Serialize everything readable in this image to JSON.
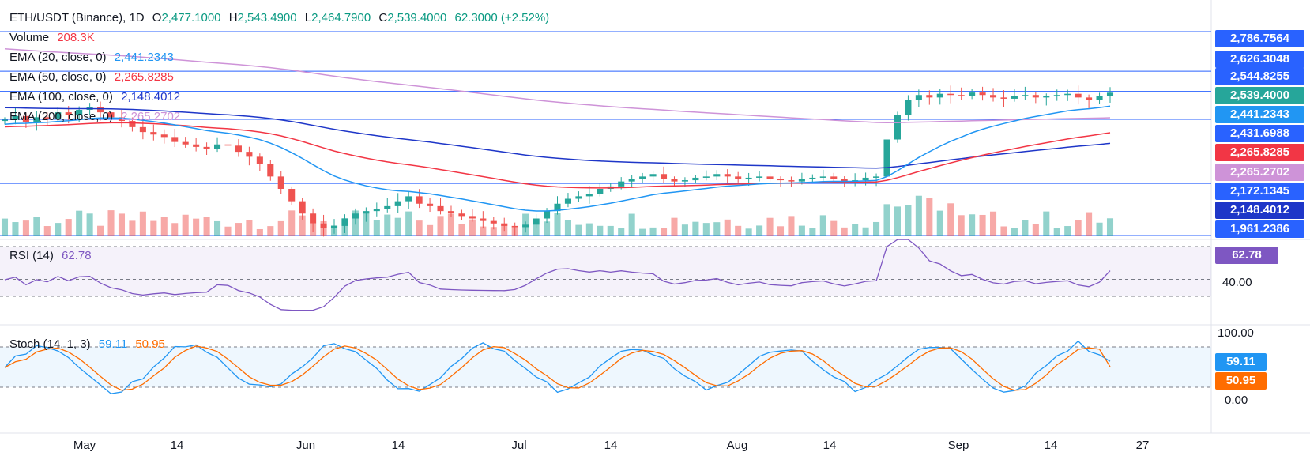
{
  "header": {
    "symbol": "ETH/USDT (Binance), 1D",
    "open_label": "O",
    "open": "2,477.1000",
    "high_label": "H",
    "high": "2,543.4900",
    "low_label": "L",
    "low": "2,464.7900",
    "close_label": "C",
    "close": "2,539.4000",
    "change": "62.3000 (+2.52%)"
  },
  "legend": {
    "volume_label": "Volume",
    "volume_value": "208.3K",
    "ema20_label": "EMA (20, close, 0)",
    "ema20_value": "2,441.2343",
    "ema50_label": "EMA (50, close, 0)",
    "ema50_value": "2,265.8285",
    "ema100_label": "EMA (100, close, 0)",
    "ema100_value": "2,148.4012",
    "ema200_label": "EMA (200, close, 0)",
    "ema200_value": "2,265.2702",
    "rsi_label": "RSI (14)",
    "rsi_value": "62.78",
    "stoch_label": "Stoch (14, 1, 3)",
    "stoch_k": "59.11",
    "stoch_d": "50.95"
  },
  "price_axis": {
    "badges": [
      {
        "text": "2,786.7564",
        "color": "#2962ff"
      },
      {
        "text": "2,626.3048",
        "color": "#2962ff"
      },
      {
        "text": "2,544.8255",
        "color": "#2962ff"
      },
      {
        "text": "2,539.4000",
        "color": "#26a69a"
      },
      {
        "text": "2,441.2343",
        "color": "#2196f3"
      },
      {
        "text": "2,431.6988",
        "color": "#2962ff"
      },
      {
        "text": "2,265.8285",
        "color": "#f23645"
      },
      {
        "text": "2,265.2702",
        "color": "#ce93d8"
      },
      {
        "text": "2,172.1345",
        "color": "#2962ff"
      },
      {
        "text": "2,148.4012",
        "color": "#1e36c8"
      },
      {
        "text": "1,961.2386",
        "color": "#2962ff"
      }
    ],
    "rsi_badge": "62.78",
    "rsi_tick": "40.00",
    "stoch_ticks": [
      "100.00",
      "0.00"
    ],
    "stoch_k_badge": "59.11",
    "stoch_d_badge": "50.95"
  },
  "x_axis": [
    "May",
    "14",
    "Jun",
    "14",
    "Jul",
    "14",
    "Aug",
    "14",
    "Sep",
    "14",
    "27"
  ],
  "colors": {
    "up": "#26a69a",
    "down": "#ef5350",
    "ema20": "#2196f3",
    "ema50": "#f23645",
    "ema100": "#1e36c8",
    "ema200": "#ce93d8",
    "rsi": "#7e57c2",
    "stoch_k": "#2196f3",
    "stoch_d": "#ff6d00",
    "hline": "#2962ff"
  },
  "chart_data": {
    "type": "candlestick",
    "title": "ETH/USDT (Binance), 1D",
    "x_labels": [
      "May",
      "14",
      "Jun",
      "14",
      "Jul",
      "14",
      "Aug",
      "14",
      "Sep",
      "14",
      "27"
    ],
    "ylim": [
      1961.2386,
      2786.7564
    ],
    "horizontal_levels": [
      2786.7564,
      2626.3048,
      2544.8255,
      2431.6988,
      2172.1345,
      1961.2386
    ],
    "close_path": [
      2430,
      2445,
      2420,
      2440,
      2435,
      2460,
      2450,
      2470,
      2480,
      2460,
      2440,
      2425,
      2400,
      2380,
      2370,
      2360,
      2340,
      2330,
      2320,
      2310,
      2330,
      2325,
      2300,
      2280,
      2250,
      2200,
      2150,
      2100,
      2050,
      2010,
      1990,
      2000,
      2030,
      2050,
      2060,
      2070,
      2080,
      2100,
      2120,
      2090,
      2080,
      2060,
      2050,
      2040,
      2030,
      2020,
      2010,
      2000,
      1995,
      2005,
      2030,
      2060,
      2090,
      2110,
      2120,
      2130,
      2150,
      2160,
      2180,
      2190,
      2200,
      2210,
      2190,
      2180,
      2185,
      2195,
      2200,
      2210,
      2200,
      2190,
      2195,
      2200,
      2190,
      2185,
      2180,
      2190,
      2195,
      2200,
      2190,
      2180,
      2185,
      2195,
      2200,
      2350,
      2450,
      2510,
      2530,
      2520,
      2535,
      2530,
      2525,
      2540,
      2530,
      2520,
      2515,
      2525,
      2530,
      2520,
      2525,
      2530,
      2535,
      2520,
      2510,
      2525,
      2539.4
    ],
    "series": [
      {
        "name": "EMA (20, close, 0)",
        "last": 2441.2343
      },
      {
        "name": "EMA (50, close, 0)",
        "last": 2265.8285
      },
      {
        "name": "EMA (100, close, 0)",
        "last": 2148.4012
      },
      {
        "name": "EMA (200, close, 0)",
        "last": 2265.2702
      }
    ],
    "volume_last": "208.3K",
    "rsi": {
      "name": "RSI (14)",
      "last": 62.78,
      "levels": [
        70,
        50,
        30
      ]
    },
    "stoch": {
      "name": "Stoch (14, 1, 3)",
      "k_last": 59.11,
      "d_last": 50.95,
      "range": [
        0,
        100
      ]
    }
  }
}
